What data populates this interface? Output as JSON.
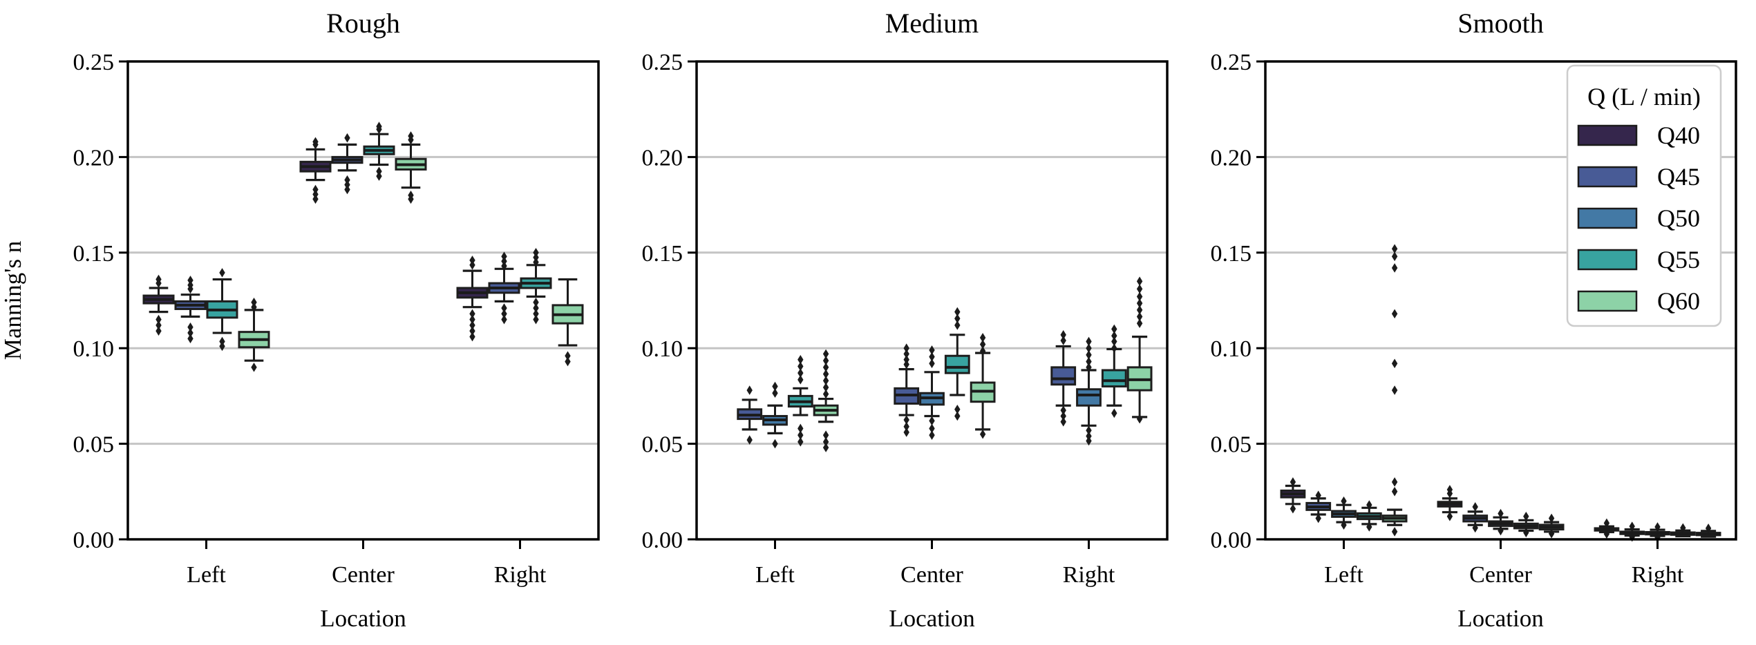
{
  "figure": {
    "ylabel": "Manning's n",
    "xlabel": "Location",
    "y_tick_labels": [
      "0.00",
      "0.05",
      "0.10",
      "0.15",
      "0.20",
      "0.25"
    ],
    "x_tick_labels": [
      "Left",
      "Center",
      "Right"
    ],
    "panel_titles": [
      "Rough",
      "Medium",
      "Smooth"
    ],
    "legend": {
      "title": "Q (L / min)",
      "entries": [
        "Q40",
        "Q45",
        "Q50",
        "Q55",
        "Q60"
      ]
    },
    "colors": {
      "Q40": "#35264c",
      "Q45": "#485b96",
      "Q50": "#4379a5",
      "Q55": "#38a3a0",
      "Q60": "#8dd2a7"
    },
    "box_edge_color": "#1e1e1e",
    "gridline_color": "#c4c4c4",
    "spine_color": "#000000",
    "background_color": "#ffffff"
  },
  "chart_data": {
    "type": "grouped-boxplot",
    "title": "",
    "box_format": [
      "whisker_low",
      "q1",
      "median",
      "q3",
      "whisker_high"
    ],
    "y_axis": {
      "label": "Manning's n",
      "range": [
        0,
        0.25
      ],
      "tick_step": 0.05,
      "gridlines": [
        0.05,
        0.1,
        0.15,
        0.2
      ],
      "grid_on": true
    },
    "x_axis": {
      "label": "Location",
      "categories": [
        "Left",
        "Center",
        "Right"
      ]
    },
    "hue": {
      "title": "Q (L / min)",
      "levels": [
        "Q40",
        "Q45",
        "Q50",
        "Q55",
        "Q60"
      ],
      "legend_position": "upper-right-inside-third-panel"
    },
    "panels": [
      {
        "title": "Rough",
        "note": "4 dodge slots; Q50 not present in this panel",
        "series": [
          {
            "q": "Q40",
            "Left": {
              "box": [
                0.119,
                0.1235,
                0.1255,
                0.1275,
                0.1315
              ],
              "outliers": [
                0.136,
                0.134,
                0.115,
                0.112,
                0.109
              ]
            },
            "Center": {
              "box": [
                0.188,
                0.1925,
                0.195,
                0.1975,
                0.204
              ],
              "outliers": [
                0.208,
                0.2065,
                0.183,
                0.1805,
                0.178
              ]
            },
            "Right": {
              "box": [
                0.1215,
                0.1265,
                0.129,
                0.1315,
                0.1405
              ],
              "outliers": [
                0.146,
                0.1435,
                0.118,
                0.115,
                0.112,
                0.109,
                0.106
              ]
            }
          },
          {
            "q": "Q45",
            "Left": {
              "box": [
                0.1165,
                0.1205,
                0.1225,
                0.1245,
                0.128
              ],
              "outliers": [
                0.1355,
                0.133,
                0.131,
                0.111,
                0.108,
                0.105
              ]
            },
            "Center": {
              "box": [
                0.193,
                0.197,
                0.1985,
                0.2,
                0.2065
              ],
              "outliers": [
                0.21,
                0.188,
                0.1855,
                0.183
              ]
            },
            "Right": {
              "box": [
                0.1245,
                0.129,
                0.1315,
                0.134,
                0.1415
              ],
              "outliers": [
                0.148,
                0.1455,
                0.143,
                0.121,
                0.118,
                0.115
              ]
            }
          },
          {
            "q": "Q55",
            "Left": {
              "box": [
                0.108,
                0.116,
                0.12,
                0.1245,
                0.136
              ],
              "outliers": [
                0.1395,
                0.1035,
                0.101
              ]
            },
            "Center": {
              "box": [
                0.196,
                0.2015,
                0.2035,
                0.2055,
                0.212
              ],
              "outliers": [
                0.216,
                0.2145,
                0.1925,
                0.19
              ]
            },
            "Right": {
              "box": [
                0.127,
                0.1315,
                0.134,
                0.1365,
                0.1435
              ],
              "outliers": [
                0.15,
                0.1475,
                0.145,
                0.124,
                0.121,
                0.118,
                0.115
              ]
            }
          },
          {
            "q": "Q60",
            "Left": {
              "box": [
                0.0935,
                0.1005,
                0.1045,
                0.1085,
                0.12
              ],
              "outliers": [
                0.124,
                0.1215,
                0.09
              ]
            },
            "Center": {
              "box": [
                0.184,
                0.1935,
                0.196,
                0.199,
                0.2065
              ],
              "outliers": [
                0.211,
                0.209,
                0.18,
                0.178
              ]
            },
            "Right": {
              "box": [
                0.1015,
                0.113,
                0.1175,
                0.1225,
                0.136
              ],
              "outliers": [
                0.096,
                0.093
              ]
            }
          }
        ]
      },
      {
        "title": "Medium",
        "note": "5 dodge slots; Q40 slot empty (no data)",
        "series": [
          {
            "q": "Q40",
            "Left": null,
            "Center": null,
            "Right": null
          },
          {
            "q": "Q45",
            "Left": {
              "box": [
                0.0575,
                0.063,
                0.065,
                0.068,
                0.073
              ],
              "outliers": [
                0.078,
                0.052
              ]
            },
            "Center": {
              "box": [
                0.065,
                0.071,
                0.0755,
                0.079,
                0.089
              ],
              "outliers": [
                0.1,
                0.097,
                0.094,
                0.0915,
                0.0625,
                0.059,
                0.056
              ]
            },
            "Right": {
              "box": [
                0.07,
                0.081,
                0.084,
                0.09,
                0.101
              ],
              "outliers": [
                0.107,
                0.104,
                0.0675,
                0.0645,
                0.0615
              ]
            }
          },
          {
            "q": "Q50",
            "Left": {
              "box": [
                0.0555,
                0.06,
                0.0625,
                0.0645,
                0.07
              ],
              "outliers": [
                0.08,
                0.0765,
                0.05
              ]
            },
            "Center": {
              "box": [
                0.0645,
                0.0705,
                0.074,
                0.0765,
                0.0875
              ],
              "outliers": [
                0.099,
                0.0955,
                0.092,
                0.062,
                0.058,
                0.0545
              ]
            },
            "Right": {
              "box": [
                0.0595,
                0.07,
                0.0755,
                0.0785,
                0.0885
              ],
              "outliers": [
                0.1035,
                0.1,
                0.0965,
                0.093,
                0.09,
                0.057,
                0.054,
                0.0515
              ]
            }
          },
          {
            "q": "Q55",
            "Left": {
              "box": [
                0.065,
                0.0695,
                0.072,
                0.075,
                0.079
              ],
              "outliers": [
                0.094,
                0.0905,
                0.087,
                0.0835,
                0.058,
                0.0545,
                0.051
              ]
            },
            "Center": {
              "box": [
                0.0755,
                0.087,
                0.09,
                0.096,
                0.107
              ],
              "outliers": [
                0.119,
                0.1155,
                0.112,
                0.068,
                0.0645
              ]
            },
            "Right": {
              "box": [
                0.07,
                0.08,
                0.083,
                0.0885,
                0.0995
              ],
              "outliers": [
                0.11,
                0.1065,
                0.1035,
                0.1,
                0.066
              ]
            }
          },
          {
            "q": "Q60",
            "Left": {
              "box": [
                0.0615,
                0.065,
                0.0675,
                0.07,
                0.0735
              ],
              "outliers": [
                0.097,
                0.0935,
                0.09,
                0.0865,
                0.083,
                0.0795,
                0.076,
                0.0545,
                0.051,
                0.048
              ]
            },
            "Center": {
              "box": [
                0.0575,
                0.072,
                0.0775,
                0.082,
                0.0975
              ],
              "outliers": [
                0.1055,
                0.102,
                0.0985,
                0.055
              ]
            },
            "Right": {
              "box": [
                0.064,
                0.078,
                0.0835,
                0.09,
                0.106
              ],
              "outliers": [
                0.135,
                0.131,
                0.127,
                0.1235,
                0.12,
                0.1165,
                0.113,
                0.063
              ]
            }
          }
        ]
      },
      {
        "title": "Smooth",
        "note": "all 5 hue levels present",
        "series": [
          {
            "q": "Q40",
            "Left": {
              "box": [
                0.0185,
                0.022,
                0.0238,
                0.0255,
                0.028
              ],
              "outliers": [
                0.03,
                0.016
              ]
            },
            "Center": {
              "box": [
                0.0142,
                0.0172,
                0.0185,
                0.0196,
                0.0214
              ],
              "outliers": [
                0.026,
                0.024,
                0.012
              ]
            },
            "Right": {
              "box": [
                0.0038,
                0.0046,
                0.0052,
                0.0058,
                0.0068
              ],
              "outliers": [
                0.0085,
                0.0028
              ]
            }
          },
          {
            "q": "Q45",
            "Left": {
              "box": [
                0.013,
                0.0154,
                0.017,
                0.019,
                0.0214
              ],
              "outliers": [
                0.023,
                0.011
              ]
            },
            "Center": {
              "box": [
                0.0075,
                0.0094,
                0.011,
                0.0124,
                0.0145
              ],
              "outliers": [
                0.017,
                0.006
              ]
            },
            "Right": {
              "box": [
                0.002,
                0.0028,
                0.0034,
                0.004,
                0.0052
              ],
              "outliers": [
                0.0068,
                0.0012
              ]
            }
          },
          {
            "q": "Q50",
            "Left": {
              "box": [
                0.009,
                0.0118,
                0.0133,
                0.0148,
                0.018
              ],
              "outliers": [
                0.02,
                0.0075
              ]
            },
            "Center": {
              "box": [
                0.0055,
                0.007,
                0.0082,
                0.0094,
                0.0115
              ],
              "outliers": [
                0.0135,
                0.0045
              ]
            },
            "Right": {
              "box": [
                0.0018,
                0.0026,
                0.0032,
                0.0038,
                0.005
              ],
              "outliers": [
                0.0065,
                0.001
              ]
            }
          },
          {
            "q": "Q55",
            "Left": {
              "box": [
                0.008,
                0.0106,
                0.012,
                0.0136,
                0.0165
              ],
              "outliers": [
                0.018,
                0.0065
              ]
            },
            "Center": {
              "box": [
                0.0045,
                0.0058,
                0.007,
                0.0082,
                0.01
              ],
              "outliers": [
                0.012,
                0.0035
              ]
            },
            "Right": {
              "box": [
                0.0016,
                0.0024,
                0.003,
                0.0036,
                0.0046
              ],
              "outliers": [
                0.006
              ]
            }
          },
          {
            "q": "Q60",
            "Left": {
              "box": [
                0.0075,
                0.0094,
                0.011,
                0.0124,
                0.0155
              ],
              "outliers": [
                0.152,
                0.148,
                0.142,
                0.118,
                0.092,
                0.078,
                0.03,
                0.025,
                0.004
              ]
            },
            "Center": {
              "box": [
                0.004,
                0.0052,
                0.0064,
                0.0076,
                0.009
              ],
              "outliers": [
                0.011,
                0.003
              ]
            },
            "Right": {
              "box": [
                0.0014,
                0.0022,
                0.0028,
                0.0034,
                0.0044
              ],
              "outliers": [
                0.0058
              ]
            }
          }
        ]
      }
    ]
  }
}
